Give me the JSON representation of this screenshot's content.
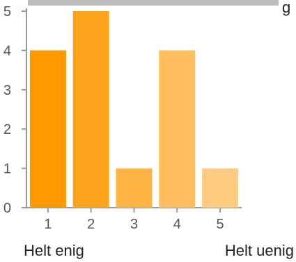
{
  "header_fragment": "g",
  "chart_data": {
    "type": "bar",
    "categories": [
      "1",
      "2",
      "3",
      "4",
      "5"
    ],
    "values": [
      4,
      5,
      1,
      4,
      1
    ],
    "ylim": [
      0,
      5
    ],
    "yticks": [
      "0",
      "1",
      "2",
      "3",
      "4",
      "5"
    ],
    "grid": false,
    "bar_colors": [
      "#ff9900",
      "#ffa31f",
      "#ffb343",
      "#ffbf5f",
      "#ffcc80"
    ],
    "axis_color": "#999999"
  },
  "scale_labels": {
    "left": "Helt enig",
    "right": "Helt uenig"
  }
}
